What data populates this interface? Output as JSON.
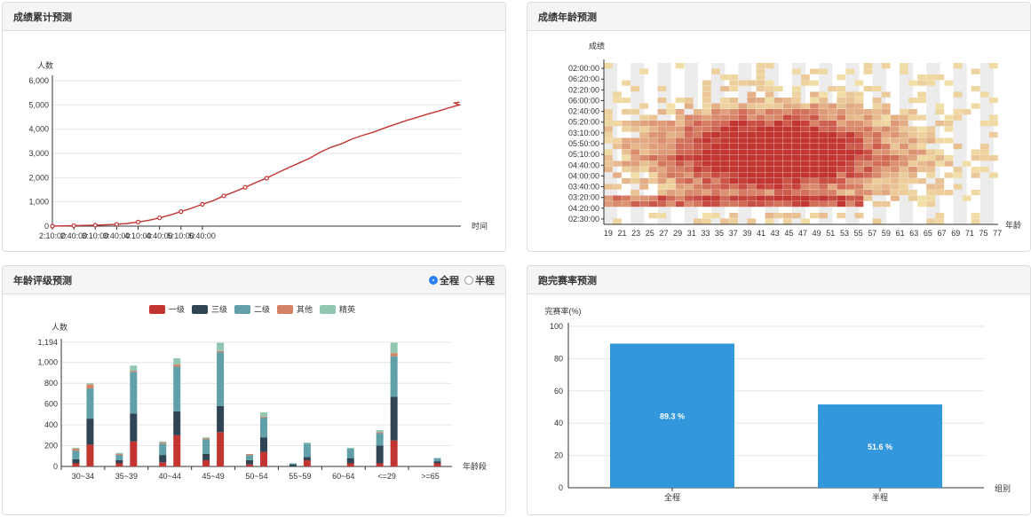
{
  "panels": {
    "cumulative": {
      "title": "成绩累计预测"
    },
    "age_heatmap": {
      "title": "成绩年龄预测"
    },
    "age_grade": {
      "title": "年龄评级预测",
      "radio": [
        {
          "label": "全程",
          "checked": true
        },
        {
          "label": "半程",
          "checked": false
        }
      ]
    },
    "completion": {
      "title": "跑完赛率预测"
    }
  },
  "colors": {
    "line": "#c23531",
    "grade1": "#c23531",
    "grade3": "#2f4554",
    "grade2": "#61a0a8",
    "other": "#d48265",
    "elite": "#91c7ae",
    "bar": "#3398db",
    "heat_low": "#f2e0a8",
    "heat_high": "#c23531"
  },
  "chart_data": [
    {
      "id": "cumulative",
      "type": "line",
      "ylabel": "人数",
      "xlabel": "时间",
      "x_ticks": [
        "2:10:00",
        "2:40:00",
        "3:10:00",
        "3:40:00",
        "4:10:00",
        "4:40:00",
        "5:10:00",
        "5:40:00"
      ],
      "y_ticks": [
        "0",
        "1,000",
        "2,000",
        "3,000",
        "4,000",
        "5,000",
        "6,000"
      ],
      "ylim": [
        0,
        6000
      ],
      "x": [
        0,
        15,
        30,
        45,
        60,
        75,
        90,
        105,
        120,
        135,
        150,
        165,
        180,
        195,
        210,
        225,
        240,
        255,
        270,
        285,
        300,
        315,
        330,
        345,
        360,
        375,
        390,
        405,
        420,
        435,
        450,
        465,
        480,
        495,
        510,
        525,
        540,
        555,
        570
      ],
      "values": [
        0,
        10,
        20,
        30,
        40,
        55,
        75,
        110,
        170,
        240,
        340,
        460,
        600,
        740,
        900,
        1050,
        1250,
        1420,
        1600,
        1800,
        1980,
        2200,
        2400,
        2600,
        2800,
        3050,
        3250,
        3400,
        3600,
        3750,
        3880,
        4050,
        4200,
        4350,
        4480,
        4620,
        4740,
        4880,
        5000
      ],
      "tail": [
        5080,
        5120,
        5140
      ],
      "marker_x": [
        0,
        30,
        60,
        90,
        120,
        150,
        180,
        210,
        240,
        270,
        300
      ]
    },
    {
      "id": "age_heatmap",
      "type": "heatmap",
      "ylabel": "成绩",
      "xlabel": "年龄",
      "x_ticks": [
        "19",
        "21",
        "23",
        "25",
        "27",
        "29",
        "31",
        "33",
        "35",
        "37",
        "39",
        "41",
        "43",
        "45",
        "47",
        "49",
        "51",
        "53",
        "55",
        "57",
        "59",
        "61",
        "63",
        "65",
        "67",
        "69",
        "71",
        "75",
        "77"
      ],
      "y_ticks": [
        "02:30:00",
        "04:20:00",
        "03:20:00",
        "03:40:00",
        "04:00:00",
        "04:40:00",
        "05:10:00",
        "05:50:00",
        "03:10:00",
        "05:20:00",
        "02:40:00",
        "06:00:00",
        "02:20:00",
        "06:20:00",
        "02:00:00"
      ]
    },
    {
      "id": "age_grade",
      "type": "bar",
      "stacked": true,
      "ylabel": "人数",
      "xlabel": "年龄段",
      "legend": [
        "一级",
        "三级",
        "二级",
        "其他",
        "精英"
      ],
      "legend_position": "top-center",
      "categories": [
        "30~34",
        "35~39",
        "40~44",
        "45~49",
        "50~54",
        "55~59",
        "60~64",
        "<=29",
        ">=65"
      ],
      "y_ticks": [
        "0",
        "200",
        "400",
        "600",
        "800",
        "1,000",
        "1,194"
      ],
      "ylim": [
        0,
        1194
      ],
      "groups": [
        [
          [
            30,
            40,
            80,
            20,
            10
          ],
          [
            210,
            250,
            290,
            40,
            10
          ]
        ],
        [
          [
            30,
            30,
            50,
            10,
            10
          ],
          [
            240,
            270,
            400,
            10,
            50
          ]
        ],
        [
          [
            40,
            70,
            110,
            10,
            10
          ],
          [
            300,
            230,
            430,
            20,
            60
          ]
        ],
        [
          [
            60,
            60,
            140,
            10,
            10
          ],
          [
            330,
            250,
            520,
            10,
            80
          ]
        ],
        [
          [
            20,
            40,
            50,
            10,
            0
          ],
          [
            140,
            140,
            190,
            10,
            40
          ]
        ],
        [
          [
            0,
            20,
            10,
            0,
            0
          ],
          [
            60,
            30,
            130,
            0,
            10
          ]
        ],
        [
          [
            0,
            0,
            0,
            0,
            0
          ],
          [
            30,
            50,
            90,
            0,
            10
          ]
        ],
        [
          [
            30,
            170,
            120,
            10,
            20
          ],
          [
            250,
            420,
            390,
            30,
            100
          ]
        ],
        [
          [
            0,
            0,
            0,
            0,
            0
          ],
          [
            30,
            20,
            30,
            0,
            0
          ]
        ]
      ]
    },
    {
      "id": "completion",
      "type": "bar",
      "ylabel": "完赛率(%)",
      "xlabel": "组别",
      "categories": [
        "全程",
        "半程"
      ],
      "values": [
        89.3,
        51.6
      ],
      "labels": [
        "89.3 %",
        "51.6 %"
      ],
      "y_ticks": [
        "0",
        "20",
        "40",
        "60",
        "80",
        "100"
      ],
      "ylim": [
        0,
        100
      ]
    }
  ]
}
